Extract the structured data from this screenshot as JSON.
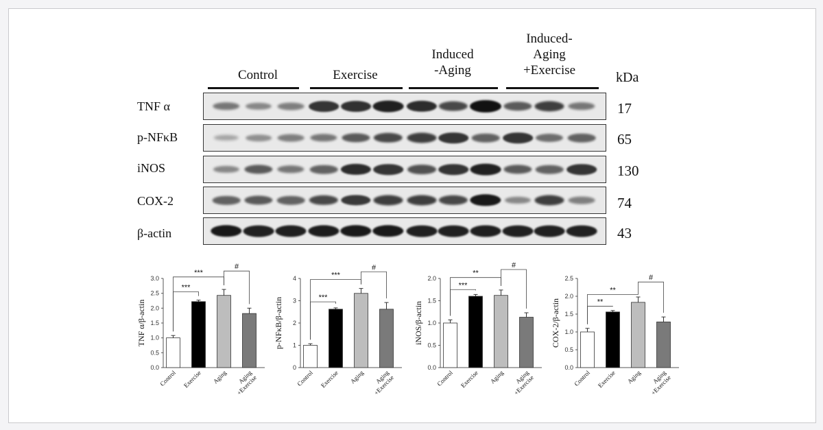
{
  "figure": {
    "groups": [
      {
        "label_lines": [
          "Control"
        ]
      },
      {
        "label_lines": [
          "Exercise"
        ]
      },
      {
        "label_lines": [
          "Induced",
          "-Aging"
        ]
      },
      {
        "label_lines": [
          "Induced-",
          "Aging",
          "+Exercise"
        ]
      }
    ],
    "kda_label": "kDa",
    "blots": [
      {
        "protein": "TNF α",
        "mw": "17",
        "intensities": [
          0.45,
          0.35,
          0.4,
          0.8,
          0.82,
          0.9,
          0.85,
          0.7,
          1.0,
          0.6,
          0.75,
          0.45
        ]
      },
      {
        "protein": "p-NFκB",
        "mw": "65",
        "intensities": [
          0.2,
          0.3,
          0.4,
          0.45,
          0.6,
          0.7,
          0.75,
          0.8,
          0.55,
          0.8,
          0.5,
          0.55
        ]
      },
      {
        "protein": "iNOS",
        "mw": "130",
        "intensities": [
          0.35,
          0.6,
          0.45,
          0.55,
          0.85,
          0.8,
          0.65,
          0.8,
          0.9,
          0.6,
          0.55,
          0.8
        ]
      },
      {
        "protein": "COX-2",
        "mw": "74",
        "intensities": [
          0.55,
          0.6,
          0.55,
          0.7,
          0.78,
          0.75,
          0.75,
          0.7,
          0.95,
          0.35,
          0.75,
          0.4
        ]
      },
      {
        "protein": "β-actin",
        "mw": "43",
        "intensities": [
          0.95,
          0.9,
          0.92,
          0.93,
          0.95,
          0.95,
          0.9,
          0.9,
          0.92,
          0.9,
          0.9,
          0.9
        ]
      }
    ],
    "band_color": "#111111",
    "blot_background": "#e9e9e9"
  },
  "chart_data": [
    {
      "type": "bar",
      "ylabel": "TNF α/β-actin",
      "categories": [
        "Control",
        "Exercise",
        "Aging",
        "Aging\n+Exercise"
      ],
      "values": [
        1.0,
        2.22,
        2.43,
        1.82
      ],
      "errors": [
        0.08,
        0.05,
        0.2,
        0.18
      ],
      "ylim": [
        0,
        3.0
      ],
      "yticks": [
        "0.0",
        "0.5",
        "1.0",
        "1.5",
        "2.0",
        "2.5",
        "3.0"
      ],
      "ytick_values": [
        0,
        0.5,
        1.0,
        1.5,
        2.0,
        2.5,
        3.0
      ],
      "brackets": [
        {
          "from": 0,
          "to": 1,
          "label": "***",
          "y": 2.55
        },
        {
          "from": 0,
          "to": 2,
          "label": "***",
          "y": 3.05
        },
        {
          "from": 2,
          "to": 3,
          "label": "#",
          "y": 3.25
        }
      ]
    },
    {
      "type": "bar",
      "ylabel": "p-NFκB/β-actin",
      "categories": [
        "Control",
        "Exercise",
        "Aging",
        "Aging\n+Exercise"
      ],
      "values": [
        1.0,
        2.62,
        3.33,
        2.62
      ],
      "errors": [
        0.07,
        0.06,
        0.22,
        0.3
      ],
      "ylim": [
        0,
        4
      ],
      "yticks": [
        "0",
        "1",
        "2",
        "3",
        "4"
      ],
      "ytick_values": [
        0,
        1,
        2,
        3,
        4
      ],
      "brackets": [
        {
          "from": 0,
          "to": 1,
          "label": "***",
          "y": 2.95
        },
        {
          "from": 0,
          "to": 2,
          "label": "***",
          "y": 3.95
        },
        {
          "from": 2,
          "to": 3,
          "label": "#",
          "y": 4.3
        }
      ]
    },
    {
      "type": "bar",
      "ylabel": "iNOS/β-actin",
      "categories": [
        "Control",
        "Exercise",
        "Aging",
        "Aging\n+Exercise"
      ],
      "values": [
        1.0,
        1.6,
        1.62,
        1.13
      ],
      "errors": [
        0.07,
        0.04,
        0.12,
        0.1
      ],
      "ylim": [
        0,
        2.0
      ],
      "yticks": [
        "0.0",
        "0.5",
        "1.0",
        "1.5",
        "2.0"
      ],
      "ytick_values": [
        0,
        0.5,
        1.0,
        1.5,
        2.0
      ],
      "brackets": [
        {
          "from": 0,
          "to": 1,
          "label": "***",
          "y": 1.75
        },
        {
          "from": 0,
          "to": 2,
          "label": "**",
          "y": 2.02
        },
        {
          "from": 2,
          "to": 3,
          "label": "#",
          "y": 2.2
        }
      ]
    },
    {
      "type": "bar",
      "ylabel": "COX-2/β-actin",
      "categories": [
        "Control",
        "Exercise",
        "Aging",
        "Aging\n+Exercise"
      ],
      "values": [
        1.0,
        1.56,
        1.83,
        1.28
      ],
      "errors": [
        0.1,
        0.04,
        0.15,
        0.14
      ],
      "ylim": [
        0,
        2.5
      ],
      "yticks": [
        "0.0",
        "0.5",
        "1.0",
        "1.5",
        "2.0",
        "2.5"
      ],
      "ytick_values": [
        0,
        0.5,
        1.0,
        1.5,
        2.0,
        2.5
      ],
      "brackets": [
        {
          "from": 0,
          "to": 1,
          "label": "**",
          "y": 1.72
        },
        {
          "from": 0,
          "to": 2,
          "label": "**",
          "y": 2.05
        },
        {
          "from": 2,
          "to": 3,
          "label": "#",
          "y": 2.4
        }
      ]
    }
  ],
  "bar_colors": [
    "#ffffff",
    "#000000",
    "#bdbdbd",
    "#7a7a7a"
  ]
}
